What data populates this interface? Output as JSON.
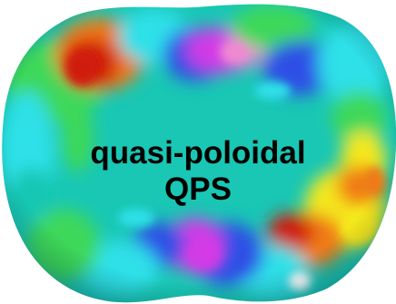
{
  "image": {
    "subject": "torus-surface-colormap",
    "colors": {
      "background": "#ffffff",
      "text": "#000000",
      "base_surface": "#19c7b4",
      "red": "#d01a0a",
      "orange": "#f07a14",
      "yellow": "#f4e81c",
      "green": "#3cd85a",
      "cyan": "#2fe0e8",
      "blue": "#2d4fe6",
      "magenta": "#d23ae6",
      "pink": "#f08ad2"
    }
  },
  "caption": {
    "line1": "quasi-poloidal",
    "line2": "QPS"
  }
}
